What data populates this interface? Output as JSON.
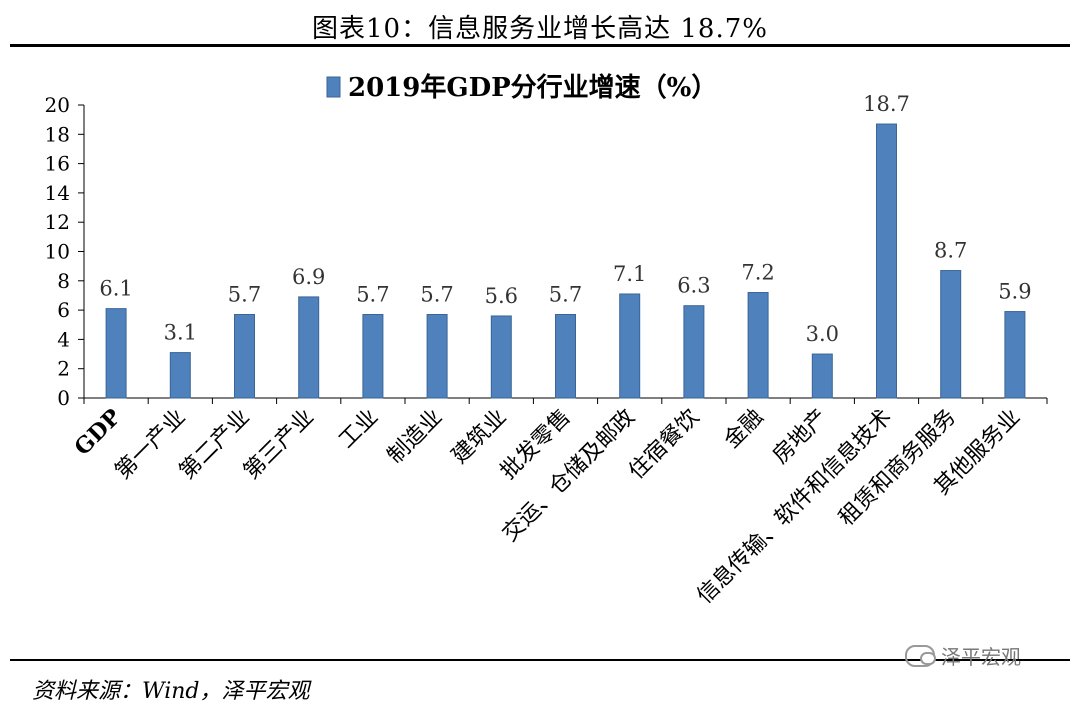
{
  "figure": {
    "title": "图表10：信息服务业增长高达 18.7%",
    "source": "资料来源：Wind，泽平宏观",
    "watermark": "泽平宏观"
  },
  "colors": {
    "bar_fill": "#4f81bd",
    "bar_stroke": "#3a6596",
    "axis": "#000000"
  },
  "chart_data": {
    "type": "bar",
    "legend_title": "2019年GDP分行业增速（%）",
    "legend_placement": "top",
    "categories": [
      "GDP",
      "第一产业",
      "第二产业",
      "第三产业",
      "工业",
      "制造业",
      "建筑业",
      "批发零售",
      "交运、仓储及邮政",
      "住宿餐饮",
      "金融",
      "房地产",
      "信息传输、软件和信息技术",
      "租赁和商务服务",
      "其他服务业"
    ],
    "values": [
      6.1,
      3.1,
      5.7,
      6.9,
      5.7,
      5.7,
      5.6,
      5.7,
      7.1,
      6.3,
      7.2,
      3.0,
      18.7,
      8.7,
      5.9
    ],
    "data_labels": [
      "6.1",
      "3.1",
      "5.7",
      "6.9",
      "5.7",
      "5.7",
      "5.6",
      "5.7",
      "7.1",
      "6.3",
      "7.2",
      "3.0",
      "18.7",
      "8.7",
      "5.9"
    ],
    "y_ticks": [
      "0",
      "2",
      "4",
      "6",
      "8",
      "10",
      "12",
      "14",
      "16",
      "18",
      "20"
    ],
    "ylim": [
      0,
      20
    ],
    "grid": false
  }
}
